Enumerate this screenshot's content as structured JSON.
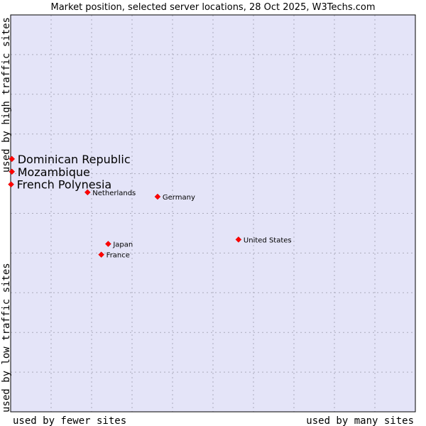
{
  "chart_data": {
    "type": "scatter",
    "title": "Market position, selected server locations, 28 Oct 2025, W3Techs.com",
    "xlabel_left": "used by fewer sites",
    "xlabel_right": "used by many sites",
    "ylabel_bottom": "used by low traffic sites",
    "ylabel_top": "used by high traffic sites",
    "xlim": [
      0,
      100
    ],
    "ylim": [
      0,
      100
    ],
    "grid": true,
    "colors": {
      "plot_bg": "#e4e4f8",
      "point": "#ff0000",
      "border": "#000000"
    },
    "points": [
      {
        "label": "Dominican Republic",
        "x": 0.3,
        "y": 63.7,
        "emphasis": true
      },
      {
        "label": "Mozambique",
        "x": 0.3,
        "y": 60.5,
        "emphasis": true
      },
      {
        "label": "French Polynesia",
        "x": 0.1,
        "y": 57.3,
        "emphasis": true
      },
      {
        "label": "Netherlands",
        "x": 19.0,
        "y": 55.3,
        "emphasis": false
      },
      {
        "label": "Germany",
        "x": 36.3,
        "y": 54.2,
        "emphasis": false
      },
      {
        "label": "United States",
        "x": 56.3,
        "y": 43.4,
        "emphasis": false
      },
      {
        "label": "Japan",
        "x": 24.1,
        "y": 42.3,
        "emphasis": false
      },
      {
        "label": "France",
        "x": 22.4,
        "y": 39.6,
        "emphasis": false
      }
    ]
  }
}
